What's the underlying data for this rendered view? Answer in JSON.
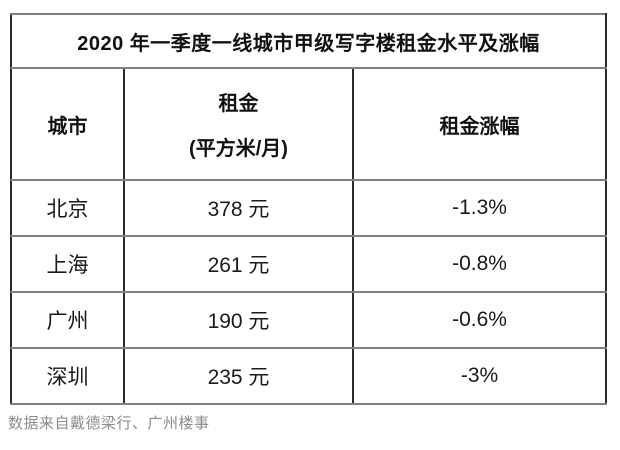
{
  "table": {
    "title": "2020 年一季度一线城市甲级写字楼租金水平及涨幅",
    "columns": {
      "city": "城市",
      "rent_line1": "租金",
      "rent_line2": "(平方米/月)",
      "change": "租金涨幅"
    },
    "rows": [
      {
        "city": "北京",
        "rent": "378 元",
        "change": "-1.3%"
      },
      {
        "city": "上海",
        "rent": "261 元",
        "change": "-0.8%"
      },
      {
        "city": "广州",
        "rent": "190 元",
        "change": "-0.6%"
      },
      {
        "city": "深圳",
        "rent": "235 元",
        "change": "-3%"
      }
    ],
    "source": "数据来自戴德梁行、广州楼事"
  },
  "colors": {
    "title_band_green": "#a8d08d",
    "vertical_border": "#2b2b2b",
    "horizontal_border": "#808080",
    "text": "#1a1a1a",
    "source_text": "#8c8c8c"
  },
  "chart_data": {
    "type": "table",
    "title": "2020 年一季度一线城市甲级写字楼租金水平及涨幅",
    "columns": [
      "城市",
      "租金 (平方米/月)",
      "租金涨幅"
    ],
    "rows": [
      [
        "北京",
        "378 元",
        "-1.3%"
      ],
      [
        "上海",
        "261 元",
        "-0.8%"
      ],
      [
        "广州",
        "190 元",
        "-0.6%"
      ],
      [
        "深圳",
        "235 元",
        "-3%"
      ]
    ],
    "rent_values_yuan_per_sqm_month": [
      378,
      261,
      190,
      235
    ],
    "change_percent": [
      -1.3,
      -0.8,
      -0.6,
      -3
    ],
    "source": "数据来自戴德梁行、广州楼事"
  }
}
